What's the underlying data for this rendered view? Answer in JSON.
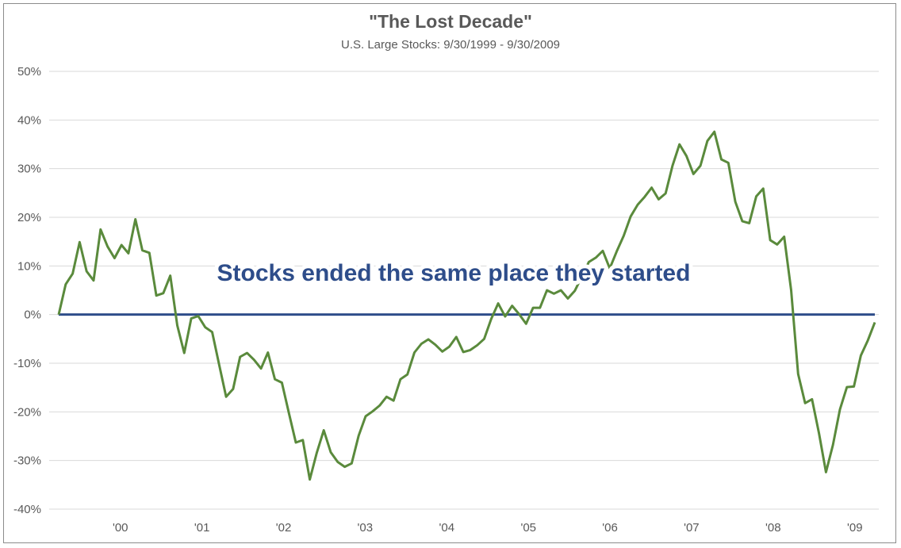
{
  "chart_data": {
    "type": "line",
    "title": "\"The Lost Decade\"",
    "subtitle": "U.S. Large Stocks: 9/30/1999 - 9/30/2009",
    "xlabel": "",
    "ylabel": "",
    "ylim": [
      -40,
      50
    ],
    "yticks": [
      "50%",
      "40%",
      "30%",
      "20%",
      "10%",
      "0%",
      "-10%",
      "-20%",
      "-30%",
      "-40%"
    ],
    "ytick_values": [
      50,
      40,
      30,
      20,
      10,
      0,
      -10,
      -20,
      -30,
      -40
    ],
    "xticks": [
      "'00",
      "'01",
      "'02",
      "'03",
      "'04",
      "'05",
      "'06",
      "'07",
      "'08",
      "'09"
    ],
    "x_start": "1999-09-30",
    "x_end": "2009-09-30",
    "grid": true,
    "legend": "none",
    "annotation": "Stocks ended the same place they started",
    "colors": {
      "series": "#5a8a3c",
      "baseline": "#2e4d8a",
      "grid": "#d9d9d9",
      "annotation": "#2e4d8a"
    },
    "baseline_value": 0,
    "series": [
      {
        "values": [
          0,
          6.2,
          8.4,
          14.9,
          8.9,
          7,
          17.5,
          14,
          11.6,
          14.3,
          12.6,
          19.6,
          13.2,
          12.7,
          3.9,
          4.4,
          8.0,
          -2.2,
          -7.9,
          -0.8,
          -0.3,
          -2.6,
          -3.6,
          -10.3,
          -16.9,
          -15.3,
          -8.7,
          -7.9,
          -9.3,
          -11.1,
          -7.8,
          -13.3,
          -14.0,
          -20.2,
          -26.3,
          -25.8,
          -33.9,
          -28.4,
          -23.8,
          -28.3,
          -30.3,
          -31.3,
          -30.6,
          -24.9,
          -20.9,
          -19.9,
          -18.7,
          -16.9,
          -17.7,
          -13.3,
          -12.3,
          -7.8,
          -6.0,
          -5.1,
          -6.2,
          -7.6,
          -6.6,
          -4.6,
          -7.7,
          -7.3,
          -6.3,
          -5.0,
          -0.9,
          2.3,
          -0.4,
          1.8,
          0.1,
          -1.9,
          1.4,
          1.4,
          5.0,
          4.3,
          5.0,
          3.3,
          4.9,
          7.8,
          10.8,
          11.7,
          13.1,
          9.5,
          13.0,
          16.2,
          20.2,
          22.6,
          24.2,
          26.1,
          23.7,
          24.9,
          30.6,
          35.0,
          32.6,
          28.9,
          30.6,
          35.7,
          37.6,
          31.9,
          31.2,
          23.2,
          19.2,
          18.8,
          24.3,
          25.9,
          15.3,
          14.4,
          16.0,
          5.0,
          -12.2,
          -18.2,
          -17.4,
          -24.4,
          -32.4,
          -26.8,
          -19.5,
          -14.9,
          -14.8,
          -8.4,
          -5.3,
          -1.6
        ]
      }
    ]
  }
}
